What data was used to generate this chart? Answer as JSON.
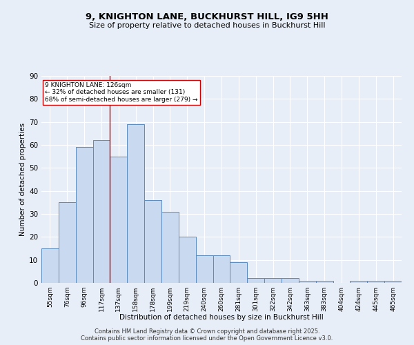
{
  "title": "9, KNIGHTON LANE, BUCKHURST HILL, IG9 5HH",
  "subtitle": "Size of property relative to detached houses in Buckhurst Hill",
  "xlabel": "Distribution of detached houses by size in Buckhurst Hill",
  "ylabel": "Number of detached properties",
  "categories": [
    "55sqm",
    "76sqm",
    "96sqm",
    "117sqm",
    "137sqm",
    "158sqm",
    "178sqm",
    "199sqm",
    "219sqm",
    "240sqm",
    "260sqm",
    "281sqm",
    "301sqm",
    "322sqm",
    "342sqm",
    "363sqm",
    "383sqm",
    "404sqm",
    "424sqm",
    "445sqm",
    "465sqm"
  ],
  "values": [
    15,
    35,
    59,
    62,
    55,
    69,
    36,
    31,
    20,
    12,
    12,
    9,
    2,
    2,
    2,
    1,
    1,
    0,
    1,
    1,
    1
  ],
  "bar_color": "#c9d9ef",
  "bar_edge_color": "#5a8abf",
  "bg_color": "#e8eef7",
  "grid_color": "#ffffff",
  "vline_x": 3.5,
  "vline_color": "#cc0000",
  "annotation_text": "9 KNIGHTON LANE: 126sqm\n← 32% of detached houses are smaller (131)\n68% of semi-detached houses are larger (279) →",
  "annotation_box_color": "#ffffff",
  "annotation_box_edge": "#cc0000",
  "footnote": "Contains HM Land Registry data © Crown copyright and database right 2025.\nContains public sector information licensed under the Open Government Licence v3.0.",
  "ylim": [
    0,
    90
  ],
  "yticks": [
    0,
    10,
    20,
    30,
    40,
    50,
    60,
    70,
    80,
    90
  ]
}
